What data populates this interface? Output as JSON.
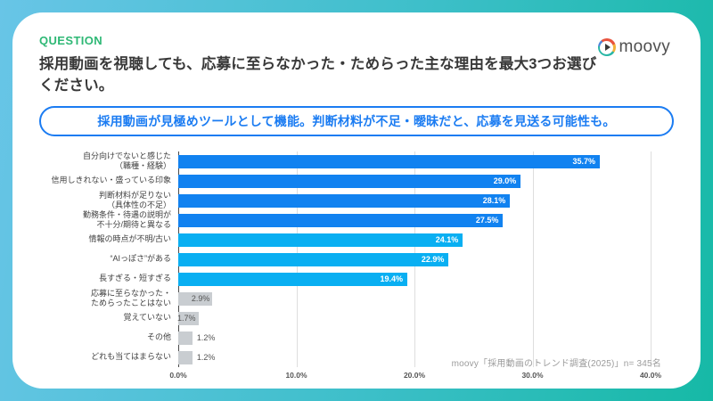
{
  "header": {
    "question_label": "QUESTION",
    "title": "採用動画を視聴しても、応募に至らなかった・ためらった主な理由を最大3つお選びください。"
  },
  "logo": {
    "text": "moovy",
    "icon": "play-circle-icon"
  },
  "banner": {
    "text": "採用動画が見極めツールとして機能。判断材料が不足・曖昧だと、応募を見送る可能性も。",
    "accent_color": "#1b7cf2"
  },
  "footer": {
    "source": "moovy「採用動画のトレンド調査(2025)」n= 345名"
  },
  "chart_data": {
    "type": "bar",
    "orientation": "horizontal",
    "title": "",
    "xlabel": "",
    "ylabel": "",
    "xlim": [
      0,
      40
    ],
    "grid": true,
    "categories": [
      "自分向けでないと感じた\n（職種・経験）",
      "信用しきれない・盛っている印象",
      "判断材料が足りない\n（具体性の不足）",
      "勤務条件・待遇の説明が\n不十分/期待と異なる",
      "情報の時点が不明/古い",
      "“AIっぽさ”がある",
      "長すぎる・短すぎる",
      "応募に至らなかった・\nためらったことはない",
      "覚えていない",
      "その他",
      "どれも当てはまらない"
    ],
    "values": [
      35.7,
      29.0,
      28.1,
      27.5,
      24.1,
      22.9,
      19.4,
      2.9,
      1.7,
      1.2,
      1.2
    ],
    "value_labels": [
      "35.7%",
      "29.0%",
      "28.1%",
      "27.5%",
      "24.1%",
      "22.9%",
      "19.4%",
      "2.9%",
      "1.7%",
      "1.2%",
      "1.2%"
    ],
    "bar_colors": [
      "primary",
      "primary",
      "primary",
      "primary",
      "secondary",
      "secondary",
      "secondary",
      "muted",
      "muted",
      "muted",
      "muted"
    ],
    "palette": {
      "primary": "#1182f0",
      "secondary": "#09aff2",
      "muted": "#c9cdd1"
    },
    "xtick_values": [
      0,
      10,
      20,
      30,
      40
    ],
    "xtick_labels": [
      "0.0%",
      "10.0%",
      "20.0%",
      "30.0%",
      "40.0%"
    ]
  }
}
